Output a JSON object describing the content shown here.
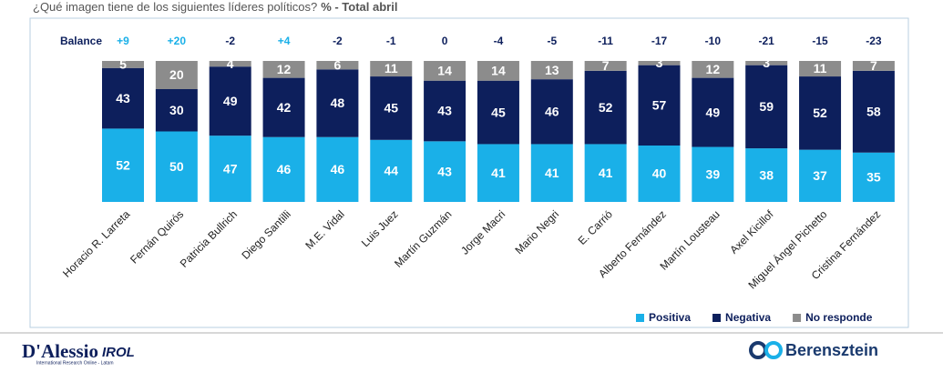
{
  "chart_data": {
    "type": "stacked_bar",
    "title": "¿Qué imagen tiene de los siguientes líderes políticos?",
    "subtitle": "% - Total abril",
    "categories": [
      "Horacio R. Larreta",
      "Fernán Quirós",
      "Patricia Bullrich",
      "Diego Santilli",
      "M.E. Vidal",
      "Luis Juez",
      "Martín Guzmán",
      "Jorge Macri",
      "Mario Negri",
      "E. Carrió",
      "Alberto Fernández",
      "Martín Lousteau",
      "Axel Kicillof",
      "Miguel Ángel Pichetto",
      "Cristina Fernández"
    ],
    "series": [
      {
        "name": "Positiva",
        "color": "#1ab0e8",
        "values": [
          52,
          50,
          47,
          46,
          46,
          44,
          43,
          41,
          41,
          41,
          40,
          39,
          38,
          37,
          35
        ]
      },
      {
        "name": "Negativa",
        "color": "#0d1f5c",
        "values": [
          43,
          30,
          49,
          42,
          48,
          45,
          43,
          45,
          46,
          52,
          57,
          49,
          59,
          52,
          58
        ]
      },
      {
        "name": "No responde",
        "color": "#8c8c8c",
        "values": [
          5,
          20,
          4,
          12,
          6,
          11,
          14,
          14,
          13,
          7,
          3,
          12,
          3,
          11,
          7
        ]
      }
    ],
    "balance": {
      "label": "Balance",
      "values": [
        9,
        20,
        -2,
        4,
        -2,
        -1,
        0,
        -4,
        -5,
        -11,
        -17,
        -10,
        -21,
        -15,
        -23
      ],
      "value_labels": [
        "+9",
        "+20",
        "-2",
        "+4",
        "-2",
        "-1",
        "0",
        "-4",
        "-5",
        "-11",
        "-17",
        "-10",
        "-21",
        "-15",
        "-23"
      ]
    },
    "ylim": [
      0,
      100
    ],
    "legend": "bottom-right"
  },
  "footer": {
    "left_logo": "D'Alessio",
    "left_logo_suffix": "IROL",
    "left_tagline": "International Research Online - Latam",
    "right_logo": "Berensztein"
  }
}
